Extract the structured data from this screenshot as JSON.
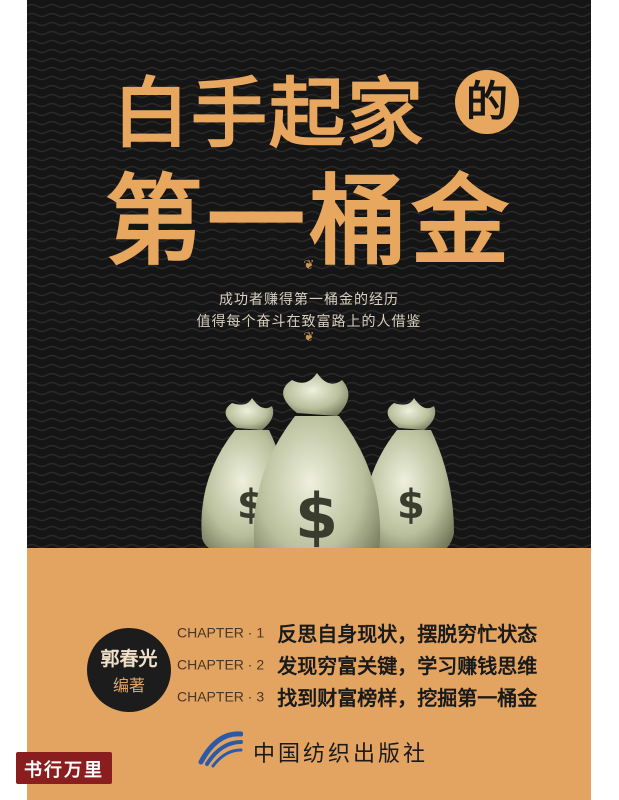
{
  "cover": {
    "title_line1": "白手起家",
    "title_de": "的",
    "title_line2": "第一桶金",
    "tagline_line1": "成功者赚得第一桶金的经历",
    "tagline_line2": "值得每个奋斗在致富路上的人借鉴",
    "ornament": "❦"
  },
  "author": {
    "name": "郭春光",
    "role": "编著"
  },
  "chapters": [
    {
      "label": "CHAPTER · 1",
      "text": "反思自身现状，摆脱穷忙状态"
    },
    {
      "label": "CHAPTER · 2",
      "text": "发现穷富关键，学习赚钱思维"
    },
    {
      "label": "CHAPTER · 3",
      "text": "找到财富榜样，挖掘第一桶金"
    }
  ],
  "publisher": {
    "name": "中国纺织出版社"
  },
  "watermark": {
    "text": "书行万里"
  },
  "colors": {
    "background_top": "#151515",
    "background_bottom": "#e3a462",
    "title": "#e8a75e"
  },
  "icons": {
    "money_bags": "money-bag-icon",
    "publisher_logo": "publisher-logo-icon"
  }
}
